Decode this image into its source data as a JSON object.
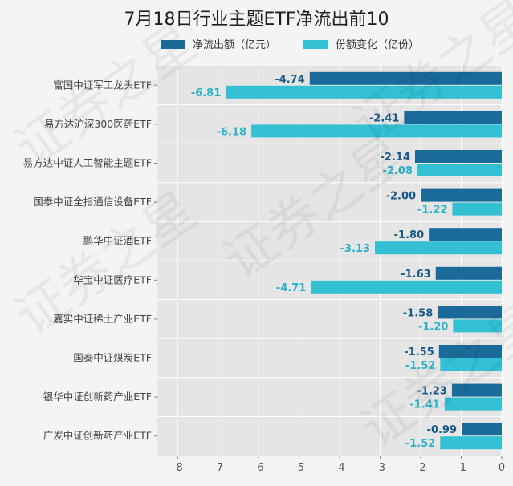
{
  "chart_data": {
    "type": "bar",
    "orientation": "horizontal",
    "title": "7月18日行业主题ETF净流出前10",
    "categories": [
      "富国中证军工龙头ETF",
      "易方达沪深300医药ETF",
      "易方达中证人工智能主题ETF",
      "国泰中证全指通信设备ETF",
      "鹏华中证酒ETF",
      "华宝中证医疗ETF",
      "嘉实中证稀土产业ETF",
      "国泰中证煤炭ETF",
      "银华中证创新药产业ETF",
      "广发中证创新药产业ETF"
    ],
    "series": [
      {
        "name": "净流出额（亿元）",
        "color": "#1a6b9a",
        "label_color": "#1a5a86",
        "values": [
          -4.74,
          -2.41,
          -2.14,
          -2.0,
          -1.8,
          -1.63,
          -1.58,
          -1.55,
          -1.23,
          -0.99
        ],
        "labels": [
          "-4.74",
          "-2.41",
          "-2.14",
          "-2.00",
          "-1.80",
          "-1.63",
          "-1.58",
          "-1.55",
          "-1.23",
          "-0.99"
        ]
      },
      {
        "name": "份额变化（亿份）",
        "color": "#33c0d3",
        "label_color": "#2ab3c8",
        "values": [
          -6.81,
          -6.18,
          -2.08,
          -1.22,
          -3.13,
          -4.71,
          -1.2,
          -1.52,
          -1.41,
          -1.52
        ],
        "labels": [
          "-6.81",
          "-6.18",
          "-2.08",
          "-1.22",
          "-3.13",
          "-4.71",
          "-1.20",
          "-1.52",
          "-1.41",
          "-1.52"
        ]
      }
    ],
    "xlim": [
      -8.5,
      0
    ],
    "xticks": [
      "-8",
      "-7",
      "-6",
      "-5",
      "-4",
      "-3",
      "-2",
      "-1",
      "0"
    ],
    "grid": true,
    "legend_position": "top",
    "plot_background": "#e5e5e5",
    "watermark": "证券之星"
  }
}
